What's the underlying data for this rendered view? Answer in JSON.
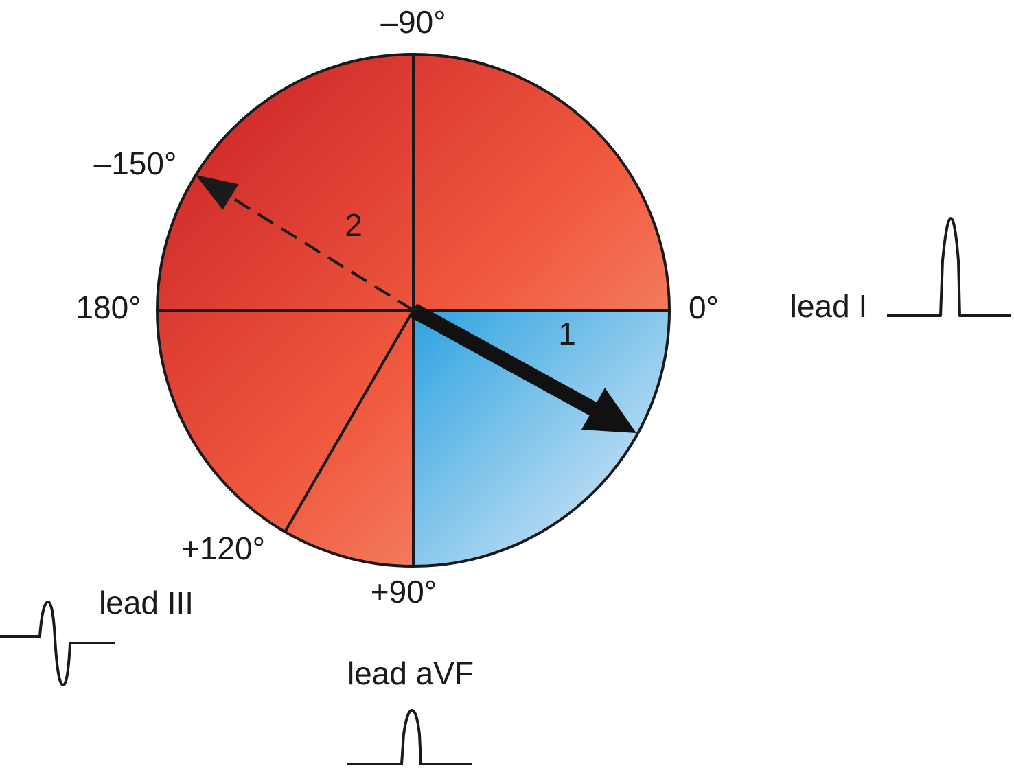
{
  "angles": {
    "minus_90": "–90°",
    "minus_150": "–150°",
    "deg_180": "180°",
    "deg_0": "0°",
    "plus_120": "+120°",
    "plus_90": "+90°"
  },
  "arrows": {
    "arrow_1": "1",
    "arrow_2": "2"
  },
  "leads": {
    "lead_i": "lead I",
    "lead_iii": "lead III",
    "lead_avf": "lead aVF"
  }
}
